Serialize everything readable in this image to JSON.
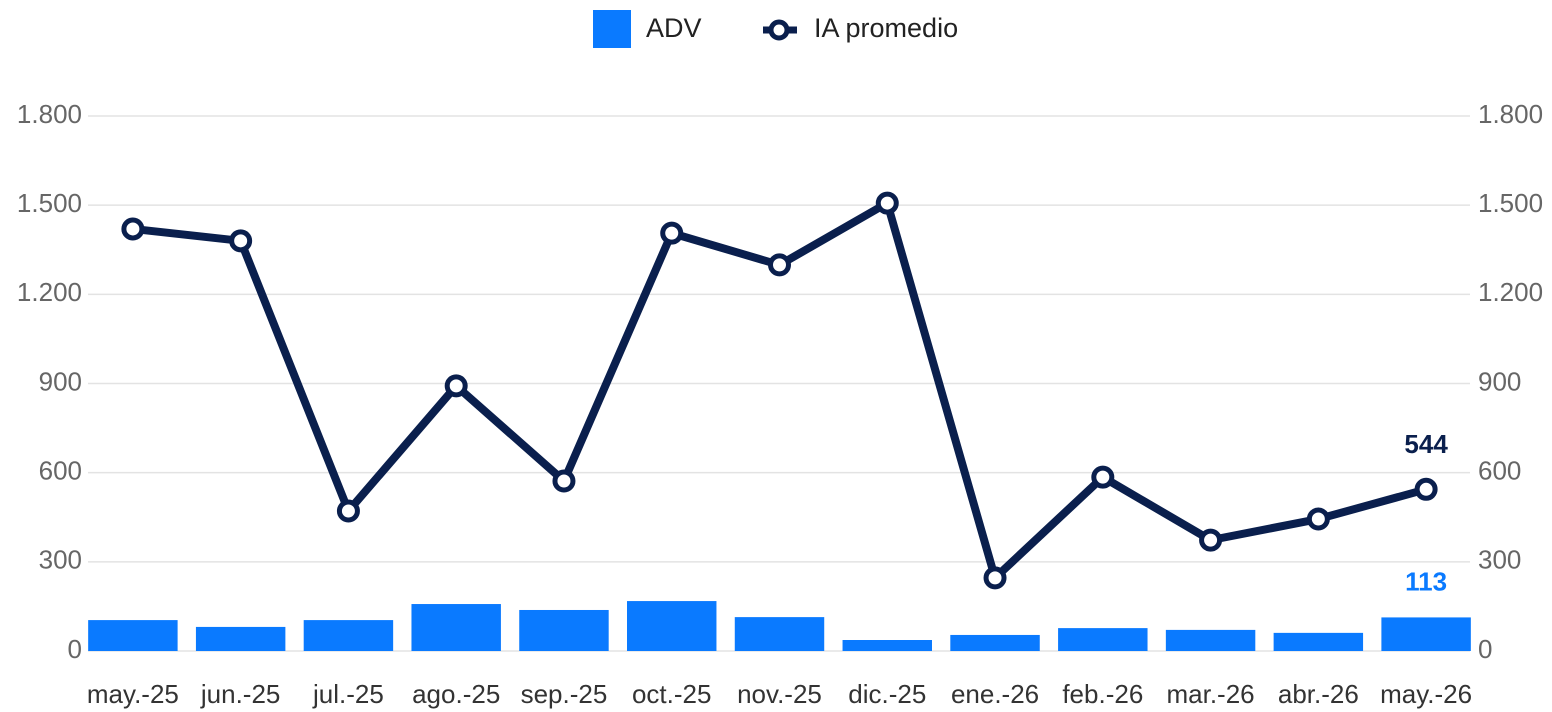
{
  "chart_data": {
    "type": "bar_line",
    "categories": [
      "may.-25",
      "jun.-25",
      "jul.-25",
      "ago.-25",
      "sep.-25",
      "oct.-25",
      "nov.-25",
      "dic.-25",
      "ene.-26",
      "feb.-26",
      "mar.-26",
      "abr.-26",
      "may.-26"
    ],
    "series": [
      {
        "name": "ADV",
        "type": "bar",
        "color": "#0a7aff",
        "values": [
          104,
          81,
          104,
          158,
          138,
          168,
          114,
          37,
          54,
          77,
          71,
          61,
          113
        ]
      },
      {
        "name": "IA promedio",
        "type": "line",
        "axis": "y2",
        "color": "#0a1f4d",
        "values": [
          1420,
          1380,
          471,
          892,
          572,
          1406,
          1299,
          1507,
          246,
          585,
          373,
          444,
          544
        ]
      }
    ],
    "data_labels": "last",
    "ylim": [
      0,
      1800
    ],
    "yticks": [
      0,
      300,
      600,
      900,
      {
        "value": 1200,
        "label": "1.200"
      },
      {
        "value": 1500,
        "label": "1.500"
      },
      {
        "value": 1800,
        "label": "1.800"
      }
    ],
    "y2lim": [
      0,
      1800
    ],
    "y2ticks": [
      0,
      300,
      600,
      900,
      {
        "value": 1200,
        "label": "1.200"
      },
      {
        "value": 1500,
        "label": "1.500"
      },
      {
        "value": 1800,
        "label": "1.800"
      }
    ],
    "grid": true,
    "legend": "top"
  }
}
